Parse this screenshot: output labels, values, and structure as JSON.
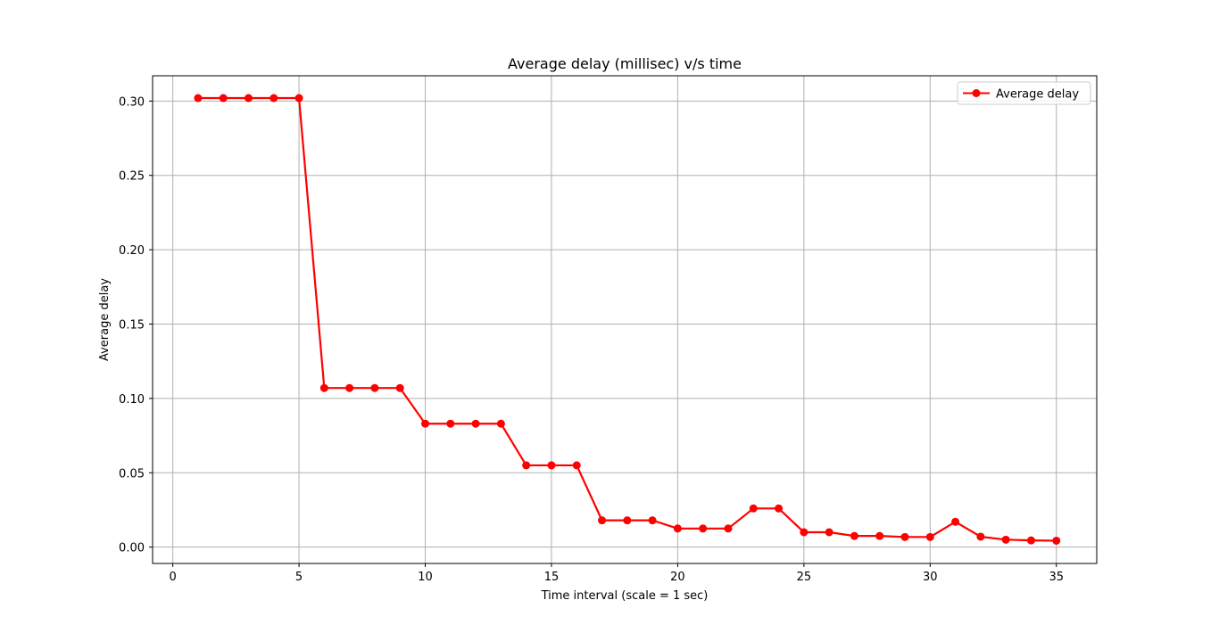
{
  "chart_data": {
    "type": "line",
    "title": "Average delay (millisec) v/s time",
    "xlabel": "Time interval (scale = 1 sec)",
    "ylabel": "Average delay",
    "xlim": [
      -0.8,
      36.6
    ],
    "ylim": [
      -0.011,
      0.317
    ],
    "xticks": [
      0,
      5,
      10,
      15,
      20,
      25,
      30,
      35
    ],
    "yticks": [
      0.0,
      0.05,
      0.1,
      0.15,
      0.2,
      0.25,
      0.3
    ],
    "ytick_labels": [
      "0.00",
      "0.05",
      "0.10",
      "0.15",
      "0.20",
      "0.25",
      "0.30"
    ],
    "grid": true,
    "legend_position": "top-right",
    "series": [
      {
        "name": "Average delay",
        "color": "#ff0000",
        "marker": "circle",
        "x": [
          1,
          2,
          3,
          4,
          5,
          6,
          7,
          8,
          9,
          10,
          11,
          12,
          13,
          14,
          15,
          16,
          17,
          18,
          19,
          20,
          21,
          22,
          23,
          24,
          25,
          26,
          27,
          28,
          29,
          30,
          31,
          32,
          33,
          34,
          35
        ],
        "y": [
          0.302,
          0.302,
          0.302,
          0.302,
          0.302,
          0.107,
          0.107,
          0.107,
          0.107,
          0.083,
          0.083,
          0.083,
          0.083,
          0.055,
          0.055,
          0.055,
          0.018,
          0.018,
          0.018,
          0.0125,
          0.0125,
          0.0125,
          0.026,
          0.026,
          0.01,
          0.01,
          0.0075,
          0.0075,
          0.0068,
          0.0068,
          0.017,
          0.007,
          0.005,
          0.0045,
          0.0043
        ]
      }
    ]
  }
}
